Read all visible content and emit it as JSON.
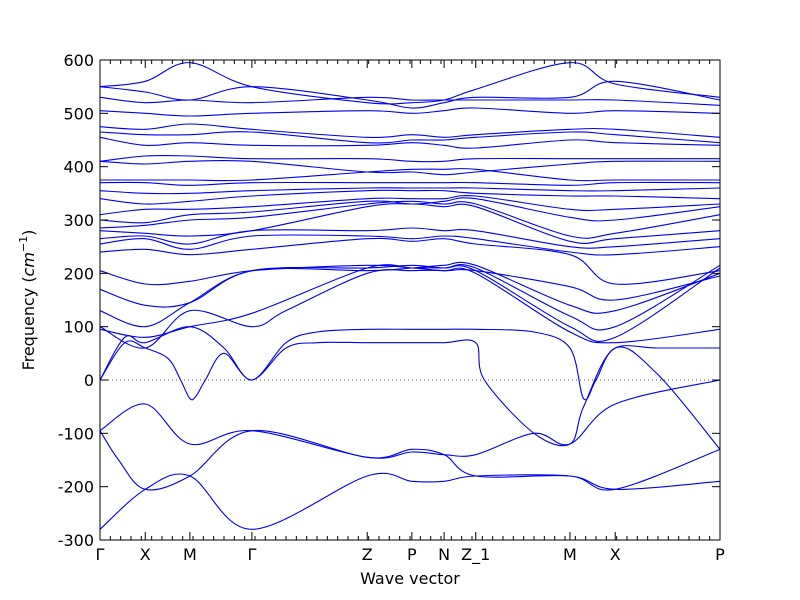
{
  "chart_data": {
    "type": "line",
    "title": "",
    "xlabel": "Wave vector",
    "ylabel_prefix": "Frequency (",
    "ylabel_unit_base": "cm",
    "ylabel_unit_exp": "−1",
    "ylabel_suffix": ")",
    "ylim": [
      -300,
      600
    ],
    "yticks": [
      -300,
      -200,
      -100,
      0,
      100,
      200,
      300,
      400,
      500,
      600
    ],
    "xlim": [
      0,
      1
    ],
    "kpoints": [
      {
        "label": "Γ",
        "x": 0.0
      },
      {
        "label": "X",
        "x": 0.073
      },
      {
        "label": "M",
        "x": 0.145
      },
      {
        "label": "Γ",
        "x": 0.245
      },
      {
        "label": "Z",
        "x": 0.431
      },
      {
        "label": "P",
        "x": 0.503
      },
      {
        "label": "N",
        "x": 0.555
      },
      {
        "label": "Z_1",
        "x": 0.606
      },
      {
        "label": "M",
        "x": 0.758
      },
      {
        "label": "X",
        "x": 0.831
      },
      {
        "label": "P",
        "x": 1.0
      }
    ],
    "zero_line": true,
    "grid": false,
    "line_color": "#0000ee",
    "series": [
      {
        "x": [
          0,
          0.073,
          0.145,
          0.245,
          0.431,
          0.503,
          0.555,
          0.606,
          0.758,
          0.831,
          1.0
        ],
        "values": [
          -280,
          -205,
          -180,
          -280,
          -180,
          -190,
          -190,
          -180,
          -180,
          -205,
          -190
        ]
      },
      {
        "x": [
          0,
          0.03,
          0.073,
          0.145,
          0.245,
          0.431,
          0.503,
          0.555,
          0.606,
          0.758,
          0.831,
          1.0
        ],
        "values": [
          -95,
          -150,
          -205,
          -180,
          -95,
          -145,
          -130,
          -140,
          -180,
          -180,
          -205,
          -130
        ]
      },
      {
        "x": [
          0,
          0.073,
          0.145,
          0.245,
          0.431,
          0.503,
          0.555,
          0.606,
          0.7,
          0.758,
          0.831,
          1.0
        ],
        "values": [
          -95,
          -45,
          -120,
          -95,
          -145,
          -135,
          -140,
          -140,
          -100,
          -120,
          -45,
          0
        ]
      },
      {
        "x": [
          0,
          0.04,
          0.073,
          0.11,
          0.13,
          0.145,
          0.155,
          0.17,
          0.2,
          0.245,
          0.3,
          0.35,
          0.431,
          0.503,
          0.555,
          0.606,
          0.62,
          0.7,
          0.758,
          0.78,
          0.831,
          0.9,
          1.0
        ],
        "values": [
          0,
          70,
          60,
          40,
          0,
          -35,
          -30,
          0,
          50,
          0,
          60,
          70,
          70,
          70,
          70,
          70,
          0,
          -100,
          -120,
          -50,
          60,
          10,
          -130
        ]
      },
      {
        "x": [
          0,
          0.04,
          0.073,
          0.145,
          0.2,
          0.245,
          0.3,
          0.35,
          0.431,
          0.503,
          0.555,
          0.606,
          0.7,
          0.758,
          0.78,
          0.8,
          0.831,
          0.9,
          1.0
        ],
        "values": [
          0,
          80,
          70,
          100,
          60,
          0,
          70,
          90,
          95,
          95,
          95,
          95,
          90,
          60,
          -35,
          0,
          60,
          60,
          60
        ]
      },
      {
        "x": [
          0,
          0.073,
          0.145,
          0.245,
          0.3,
          0.431,
          0.503,
          0.555,
          0.606,
          0.758,
          0.831,
          1.0
        ],
        "values": [
          100,
          60,
          130,
          100,
          130,
          200,
          205,
          205,
          200,
          90,
          70,
          95
        ]
      },
      {
        "x": [
          0,
          0.073,
          0.145,
          0.245,
          0.431,
          0.503,
          0.555,
          0.606,
          0.758,
          0.831,
          1.0
        ],
        "values": [
          95,
          80,
          100,
          125,
          210,
          210,
          210,
          205,
          100,
          80,
          210
        ]
      },
      {
        "x": [
          0,
          0.073,
          0.145,
          0.245,
          0.431,
          0.503,
          0.555,
          0.606,
          0.758,
          0.831,
          1.0
        ],
        "values": [
          130,
          100,
          145,
          205,
          210,
          215,
          210,
          210,
          120,
          100,
          215
        ]
      },
      {
        "x": [
          0,
          0.073,
          0.145,
          0.245,
          0.431,
          0.503,
          0.555,
          0.606,
          0.758,
          0.831,
          1.0
        ],
        "values": [
          170,
          140,
          145,
          205,
          205,
          210,
          215,
          215,
          140,
          130,
          200
        ]
      },
      {
        "x": [
          0,
          0.073,
          0.145,
          0.245,
          0.431,
          0.503,
          0.555,
          0.606,
          0.758,
          0.831,
          1.0
        ],
        "values": [
          205,
          180,
          185,
          205,
          215,
          210,
          205,
          205,
          175,
          150,
          195
        ]
      },
      {
        "x": [
          0,
          0.073,
          0.145,
          0.245,
          0.431,
          0.503,
          0.555,
          0.606,
          0.758,
          0.831,
          1.0
        ],
        "values": [
          240,
          245,
          235,
          245,
          265,
          260,
          265,
          255,
          235,
          180,
          205
        ]
      },
      {
        "x": [
          0,
          0.073,
          0.145,
          0.245,
          0.431,
          0.503,
          0.555,
          0.606,
          0.758,
          0.831,
          1.0
        ],
        "values": [
          255,
          265,
          245,
          270,
          270,
          265,
          270,
          265,
          240,
          235,
          250
        ]
      },
      {
        "x": [
          0,
          0.073,
          0.145,
          0.245,
          0.431,
          0.503,
          0.555,
          0.606,
          0.758,
          0.831,
          1.0
        ],
        "values": [
          265,
          270,
          255,
          280,
          280,
          285,
          280,
          280,
          250,
          250,
          265
        ]
      },
      {
        "x": [
          0,
          0.073,
          0.145,
          0.245,
          0.431,
          0.503,
          0.555,
          0.606,
          0.758,
          0.831,
          1.0
        ],
        "values": [
          280,
          275,
          270,
          280,
          325,
          330,
          325,
          325,
          260,
          265,
          280
        ]
      },
      {
        "x": [
          0,
          0.073,
          0.145,
          0.245,
          0.431,
          0.503,
          0.555,
          0.606,
          0.758,
          0.831,
          1.0
        ],
        "values": [
          285,
          290,
          300,
          305,
          330,
          335,
          330,
          330,
          270,
          275,
          310
        ]
      },
      {
        "x": [
          0,
          0.073,
          0.145,
          0.245,
          0.431,
          0.503,
          0.555,
          0.606,
          0.758,
          0.831,
          1.0
        ],
        "values": [
          300,
          295,
          310,
          315,
          335,
          330,
          335,
          340,
          305,
          300,
          325
        ]
      },
      {
        "x": [
          0,
          0.073,
          0.145,
          0.245,
          0.431,
          0.503,
          0.555,
          0.606,
          0.758,
          0.831,
          1.0
        ],
        "values": [
          310,
          320,
          320,
          325,
          340,
          340,
          340,
          345,
          320,
          320,
          330
        ]
      },
      {
        "x": [
          0,
          0.073,
          0.145,
          0.245,
          0.431,
          0.503,
          0.555,
          0.606,
          0.758,
          0.831,
          1.0
        ],
        "values": [
          340,
          330,
          335,
          345,
          355,
          355,
          355,
          350,
          345,
          345,
          340
        ]
      },
      {
        "x": [
          0,
          0.073,
          0.145,
          0.245,
          0.431,
          0.503,
          0.555,
          0.606,
          0.758,
          0.831,
          1.0
        ],
        "values": [
          355,
          350,
          350,
          355,
          360,
          360,
          360,
          360,
          355,
          355,
          360
        ]
      },
      {
        "x": [
          0,
          0.073,
          0.145,
          0.245,
          0.431,
          0.503,
          0.555,
          0.606,
          0.758,
          0.831,
          1.0
        ],
        "values": [
          370,
          370,
          365,
          370,
          370,
          370,
          370,
          370,
          365,
          370,
          370
        ]
      },
      {
        "x": [
          0,
          0.073,
          0.145,
          0.245,
          0.431,
          0.503,
          0.555,
          0.606,
          0.758,
          0.831,
          1.0
        ],
        "values": [
          375,
          375,
          375,
          375,
          390,
          395,
          395,
          395,
          375,
          375,
          375
        ]
      },
      {
        "x": [
          0,
          0.073,
          0.145,
          0.245,
          0.431,
          0.503,
          0.555,
          0.606,
          0.758,
          0.831,
          1.0
        ],
        "values": [
          410,
          405,
          410,
          410,
          390,
          390,
          385,
          390,
          405,
          410,
          410
        ]
      },
      {
        "x": [
          0,
          0.073,
          0.145,
          0.245,
          0.431,
          0.503,
          0.555,
          0.606,
          0.758,
          0.831,
          1.0
        ],
        "values": [
          410,
          420,
          420,
          415,
          415,
          410,
          410,
          415,
          415,
          415,
          415
        ]
      },
      {
        "x": [
          0,
          0.073,
          0.145,
          0.245,
          0.431,
          0.503,
          0.555,
          0.606,
          0.758,
          0.831,
          1.0
        ],
        "values": [
          455,
          440,
          445,
          440,
          440,
          445,
          440,
          435,
          450,
          445,
          440
        ]
      },
      {
        "x": [
          0,
          0.073,
          0.145,
          0.245,
          0.431,
          0.503,
          0.555,
          0.606,
          0.758,
          0.831,
          1.0
        ],
        "values": [
          465,
          460,
          460,
          465,
          445,
          450,
          450,
          455,
          465,
          460,
          445
        ]
      },
      {
        "x": [
          0,
          0.073,
          0.145,
          0.245,
          0.431,
          0.503,
          0.555,
          0.606,
          0.758,
          0.831,
          1.0
        ],
        "values": [
          475,
          470,
          480,
          470,
          455,
          460,
          455,
          460,
          470,
          470,
          455
        ]
      },
      {
        "x": [
          0,
          0.073,
          0.145,
          0.245,
          0.431,
          0.503,
          0.555,
          0.606,
          0.758,
          0.831,
          1.0
        ],
        "values": [
          505,
          500,
          495,
          500,
          505,
          500,
          505,
          510,
          500,
          505,
          500
        ]
      },
      {
        "x": [
          0,
          0.073,
          0.145,
          0.245,
          0.431,
          0.503,
          0.555,
          0.606,
          0.758,
          0.831,
          1.0
        ],
        "values": [
          530,
          520,
          525,
          520,
          530,
          525,
          525,
          525,
          525,
          525,
          515
        ]
      },
      {
        "x": [
          0,
          0.073,
          0.145,
          0.245,
          0.431,
          0.503,
          0.555,
          0.606,
          0.758,
          0.831,
          1.0
        ],
        "values": [
          550,
          540,
          525,
          550,
          525,
          510,
          520,
          530,
          530,
          560,
          525
        ]
      },
      {
        "x": [
          0,
          0.073,
          0.145,
          0.245,
          0.431,
          0.503,
          0.555,
          0.606,
          0.758,
          0.831,
          1.0
        ],
        "values": [
          550,
          560,
          595,
          550,
          520,
          520,
          525,
          545,
          595,
          555,
          530
        ]
      }
    ]
  }
}
